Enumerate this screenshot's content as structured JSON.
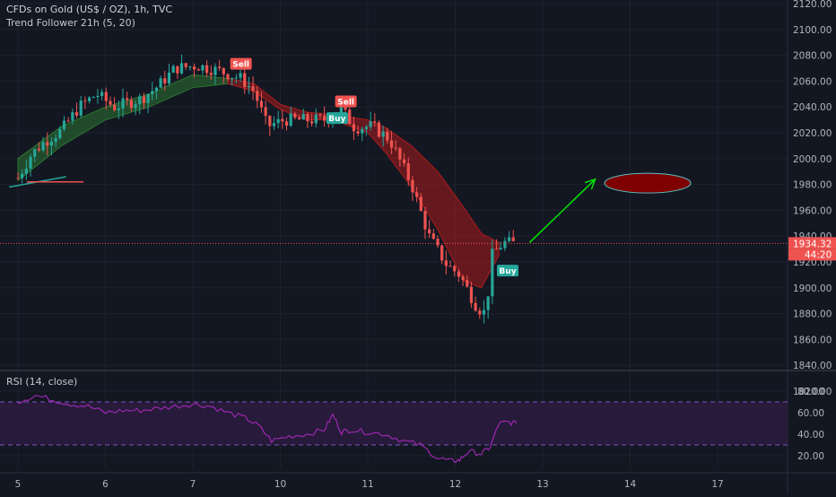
{
  "header": {
    "symbol": "CFDs on Gold (US$ / OZ), 1h, TVC",
    "indicator": "Trend Follower 21h (5, 20)"
  },
  "rsi_panel": {
    "label": "RSI (14, close)"
  },
  "price_badge": {
    "price": "1934.32",
    "countdown": "44:20"
  },
  "colors": {
    "background": "#131722",
    "up": "#26a69a",
    "down": "#ef5350",
    "band_up": "#2e7d32",
    "band_down": "#b71c1c",
    "rsi_line": "#9c27b0",
    "rsi_fill": "#2a1b3d",
    "arrow": "#00e600",
    "target_ellipse": "#7f0000"
  },
  "chart_data": [
    {
      "type": "candlestick",
      "title": "CFDs on Gold (US$ / OZ), 1h, TVC",
      "x_tick_labels": [
        "5",
        "6",
        "7",
        "10",
        "11",
        "12",
        "13",
        "14",
        "17"
      ],
      "y_tick_labels": [
        "1820.00",
        "1840.00",
        "1860.00",
        "1880.00",
        "1900.00",
        "1920.00",
        "1940.00",
        "1960.00",
        "1980.00",
        "2000.00",
        "2020.00",
        "2040.00",
        "2060.00",
        "2080.00",
        "2100.00",
        "2120.00"
      ],
      "ylim": [
        1810,
        2128
      ],
      "grid": true,
      "current_price": 1934.32,
      "trend_path": [
        {
          "day": 0.0,
          "price": 1985
        },
        {
          "day": 0.15,
          "price": 2003
        },
        {
          "day": 0.3,
          "price": 2013
        },
        {
          "day": 0.5,
          "price": 2022
        },
        {
          "day": 0.7,
          "price": 2040
        },
        {
          "day": 0.9,
          "price": 2050
        },
        {
          "day": 1.1,
          "price": 2040
        },
        {
          "day": 1.4,
          "price": 2046
        },
        {
          "day": 1.6,
          "price": 2056
        },
        {
          "day": 1.8,
          "price": 2070
        },
        {
          "day": 2.05,
          "price": 2072
        },
        {
          "day": 2.3,
          "price": 2068
        },
        {
          "day": 2.55,
          "price": 2062
        },
        {
          "day": 2.7,
          "price": 2052
        },
        {
          "day": 2.85,
          "price": 2025
        },
        {
          "day": 3.05,
          "price": 2030
        },
        {
          "day": 3.3,
          "price": 2030
        },
        {
          "day": 3.5,
          "price": 2030
        },
        {
          "day": 3.7,
          "price": 2038
        },
        {
          "day": 3.85,
          "price": 2024
        },
        {
          "day": 4.05,
          "price": 2025
        },
        {
          "day": 4.25,
          "price": 2015
        },
        {
          "day": 4.5,
          "price": 1980
        },
        {
          "day": 4.7,
          "price": 1940
        },
        {
          "day": 4.9,
          "price": 1918
        },
        {
          "day": 5.05,
          "price": 1910
        },
        {
          "day": 5.25,
          "price": 1885
        },
        {
          "day": 5.35,
          "price": 1880
        },
        {
          "day": 5.42,
          "price": 1925
        },
        {
          "day": 5.55,
          "price": 1935
        },
        {
          "day": 5.7,
          "price": 1934
        }
      ],
      "band": [
        {
          "day": 0.0,
          "upper": 2000,
          "lower": 1983
        },
        {
          "day": 0.5,
          "upper": 2025,
          "lower": 2010
        },
        {
          "day": 1.0,
          "upper": 2040,
          "lower": 2030
        },
        {
          "day": 1.5,
          "upper": 2050,
          "lower": 2040
        },
        {
          "day": 2.0,
          "upper": 2065,
          "lower": 2055
        },
        {
          "day": 2.4,
          "upper": 2062,
          "lower": 2058
        },
        {
          "day": 2.7,
          "upper": 2058,
          "lower": 2052
        },
        {
          "day": 3.0,
          "upper": 2042,
          "lower": 2038
        },
        {
          "day": 3.3,
          "upper": 2036,
          "lower": 2030
        },
        {
          "day": 3.6,
          "upper": 2034,
          "lower": 2030
        },
        {
          "day": 4.0,
          "upper": 2030,
          "lower": 2020
        },
        {
          "day": 4.2,
          "upper": 2024,
          "lower": 2005
        },
        {
          "day": 4.5,
          "upper": 2010,
          "lower": 1978
        },
        {
          "day": 4.8,
          "upper": 1990,
          "lower": 1945
        },
        {
          "day": 5.1,
          "upper": 1962,
          "lower": 1905
        },
        {
          "day": 5.3,
          "upper": 1942,
          "lower": 1900
        },
        {
          "day": 5.5,
          "upper": 1935,
          "lower": 1925
        }
      ],
      "signals": [
        {
          "label": "Sell",
          "day": 2.55,
          "price": 2073,
          "kind": "sell"
        },
        {
          "label": "Sell",
          "day": 3.75,
          "price": 2044,
          "kind": "sell"
        },
        {
          "label": "Buy",
          "day": 3.65,
          "price": 2031,
          "kind": "buy"
        },
        {
          "label": "Buy",
          "day": 5.6,
          "price": 1913,
          "kind": "buy"
        }
      ],
      "annotations": {
        "trendline": [
          {
            "day": -0.1,
            "price": 1978
          },
          {
            "day": 0.55,
            "price": 1986
          }
        ],
        "red_line": [
          {
            "day": 0.1,
            "price": 1982
          },
          {
            "day": 0.75,
            "price": 1982
          }
        ],
        "arrow": [
          {
            "day": 5.85,
            "price": 1935
          },
          {
            "day": 6.6,
            "price": 1984
          }
        ],
        "target_ellipse": {
          "day": 7.2,
          "price": 1981
        }
      }
    },
    {
      "type": "line",
      "title": "RSI (14, close)",
      "y_tick_labels": [
        "20.00",
        "40.00",
        "60.00",
        "80.00"
      ],
      "ylim": [
        5,
        88
      ],
      "bands": [
        30,
        70
      ],
      "x": [
        0.0,
        0.2,
        0.4,
        0.6,
        0.8,
        1.0,
        1.2,
        1.4,
        1.6,
        1.8,
        2.0,
        2.2,
        2.4,
        2.6,
        2.75,
        2.9,
        3.1,
        3.3,
        3.5,
        3.6,
        3.7,
        3.8,
        4.0,
        4.2,
        4.4,
        4.6,
        4.8,
        4.95,
        5.05,
        5.15,
        5.3,
        5.4,
        5.5,
        5.6,
        5.7
      ],
      "values": [
        70,
        76,
        72,
        68,
        66,
        60,
        62,
        62,
        64,
        66,
        68,
        66,
        60,
        55,
        48,
        34,
        38,
        40,
        44,
        58,
        42,
        44,
        42,
        40,
        34,
        30,
        18,
        15,
        16,
        24,
        22,
        28,
        50,
        51,
        50
      ]
    }
  ]
}
